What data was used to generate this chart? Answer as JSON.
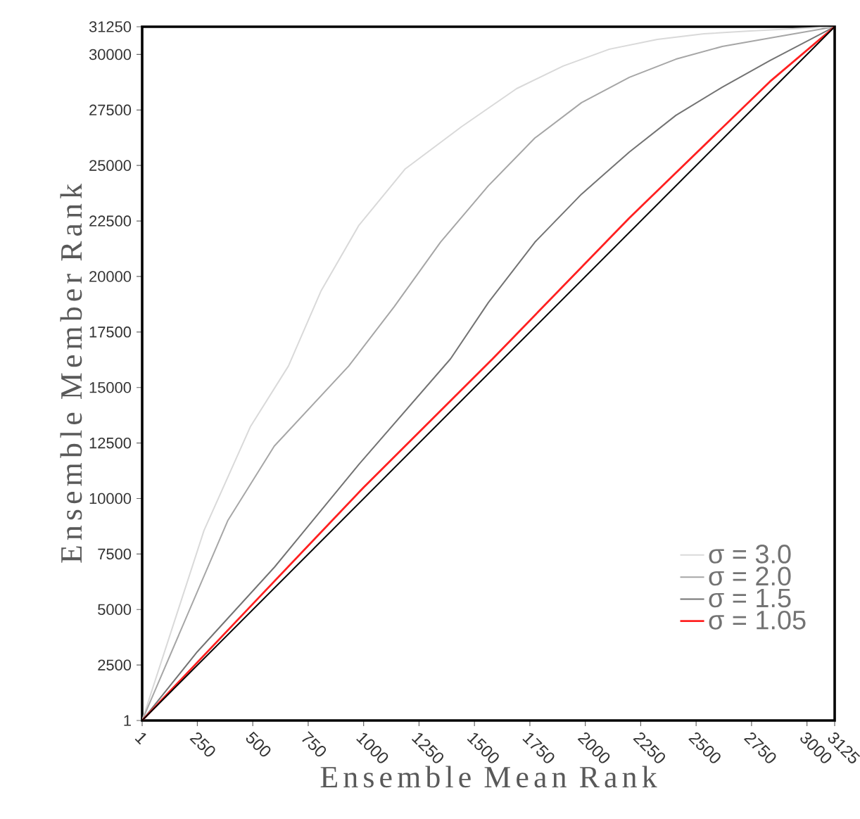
{
  "chart_data": {
    "type": "line",
    "xlabel": "Ensemble Mean Rank",
    "ylabel": "Ensemble Member Rank",
    "xlim": [
      1,
      3125
    ],
    "ylim": [
      1,
      31250
    ],
    "xticks": [
      1,
      250,
      500,
      750,
      1000,
      1250,
      1500,
      1750,
      2000,
      2250,
      2500,
      2750,
      3000,
      3125
    ],
    "yticks": [
      1,
      2500,
      5000,
      7500,
      10000,
      12500,
      15000,
      17500,
      20000,
      22500,
      25000,
      27500,
      30000,
      31250
    ],
    "legend": "bottom right",
    "marker": "none",
    "line_style": "solid",
    "series": [
      {
        "name": "σ = 3.0",
        "color": "#d9d9d9",
        "x": [
          1,
          280,
          490,
          661,
          807,
          979,
          1188,
          1442,
          1690,
          1900,
          2109,
          2325,
          2535,
          2744,
          3125
        ],
        "values": [
          1,
          8560,
          13250,
          15970,
          19330,
          22310,
          24850,
          26750,
          28460,
          29480,
          30240,
          30680,
          30930,
          31060,
          31250
        ]
      },
      {
        "name": "σ = 2.0",
        "color": "#a6a6a6",
        "x": [
          1,
          387,
          597,
          933,
          1138,
          1347,
          1563,
          1773,
          1983,
          2199,
          2409,
          2618,
          2834,
          3125
        ],
        "values": [
          1,
          9000,
          12360,
          15970,
          18640,
          21550,
          24090,
          26240,
          27830,
          28970,
          29790,
          30360,
          30740,
          31250
        ]
      },
      {
        "name": "σ = 1.5",
        "color": "#737373",
        "x": [
          1,
          250,
          598,
          979,
          1392,
          1563,
          1773,
          1983,
          2199,
          2409,
          2618,
          2834,
          3125
        ],
        "values": [
          1,
          3100,
          6910,
          11540,
          16290,
          18830,
          21550,
          23710,
          25610,
          27260,
          28530,
          29730,
          31250
        ]
      },
      {
        "name": "σ = 1.05",
        "color": "#ff2020",
        "x": [
          1,
          500,
          1000,
          1582,
          2198,
          2833,
          3125
        ],
        "values": [
          1,
          5250,
          10500,
          16290,
          22630,
          28780,
          31250
        ]
      },
      {
        "color": "#000000",
        "x": [
          1,
          3125
        ],
        "values": [
          1,
          31250
        ]
      }
    ]
  }
}
